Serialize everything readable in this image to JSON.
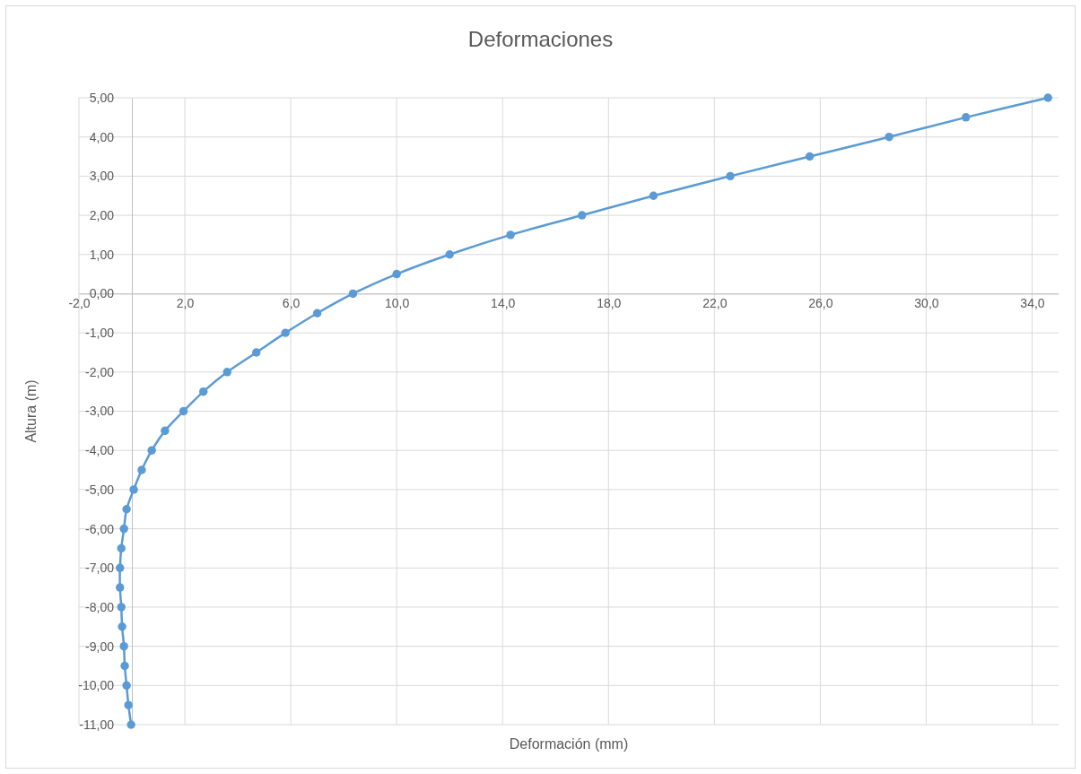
{
  "chart_data": {
    "type": "line",
    "title": "Deformaciones",
    "xlabel": "Deformación (mm)",
    "ylabel": "Altura (m)",
    "x": [
      34.6,
      31.5,
      28.6,
      25.6,
      22.6,
      19.7,
      17.0,
      14.3,
      12.0,
      10.0,
      8.35,
      7.0,
      5.8,
      4.7,
      3.6,
      2.7,
      1.95,
      1.25,
      0.75,
      0.37,
      0.07,
      -0.2,
      -0.3,
      -0.4,
      -0.45,
      -0.45,
      -0.4,
      -0.37,
      -0.3,
      -0.27,
      -0.2,
      -0.13,
      -0.03
    ],
    "series": [
      {
        "color": "#5b9bd5",
        "values": [
          5,
          4.5,
          4,
          3.5,
          3,
          2.5,
          2,
          1.5,
          1,
          0.5,
          0,
          -0.5,
          -1,
          -1.5,
          -2,
          -2.5,
          -3,
          -3.5,
          -4,
          -4.5,
          -5,
          -5.5,
          -6,
          -6.5,
          -7,
          -7.5,
          -8,
          -8.5,
          -9,
          -9.5,
          -10,
          -10.5,
          -11
        ]
      }
    ],
    "xlim": [
      -2,
      35
    ],
    "ylim": [
      -11,
      5
    ],
    "xticks": [
      {
        "value": -2,
        "label": "-2,0"
      },
      {
        "value": 2,
        "label": "2,0"
      },
      {
        "value": 6,
        "label": "6,0"
      },
      {
        "value": 10,
        "label": "10,0"
      },
      {
        "value": 14,
        "label": "14,0"
      },
      {
        "value": 18,
        "label": "18,0"
      },
      {
        "value": 22,
        "label": "22,0"
      },
      {
        "value": 26,
        "label": "26,0"
      },
      {
        "value": 30,
        "label": "30,0"
      },
      {
        "value": 34,
        "label": "34,0"
      }
    ],
    "yticks": [
      {
        "value": -11,
        "label": "-11,00"
      },
      {
        "value": -10,
        "label": "-10,00"
      },
      {
        "value": -9,
        "label": "-9,00"
      },
      {
        "value": -8,
        "label": "-8,00"
      },
      {
        "value": -7,
        "label": "-7,00"
      },
      {
        "value": -6,
        "label": "-6,00"
      },
      {
        "value": -5,
        "label": "-5,00"
      },
      {
        "value": -4,
        "label": "-4,00"
      },
      {
        "value": -3,
        "label": "-3,00"
      },
      {
        "value": -2,
        "label": "-2,00"
      },
      {
        "value": -1,
        "label": "-1,00"
      },
      {
        "value": 0,
        "label": "0,00"
      },
      {
        "value": 1,
        "label": "1,00"
      },
      {
        "value": 2,
        "label": "2,00"
      },
      {
        "value": 3,
        "label": "3,00"
      },
      {
        "value": 4,
        "label": "4,00"
      },
      {
        "value": 5,
        "label": "5,00"
      }
    ],
    "grid": true,
    "marker": "circle",
    "line_style": "solid"
  }
}
